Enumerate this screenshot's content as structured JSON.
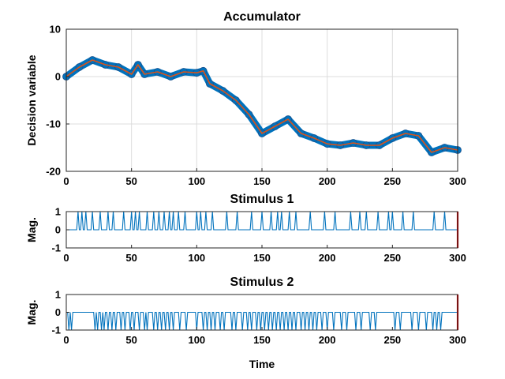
{
  "colors": {
    "accumulator_marker": "#0072BD",
    "accumulator_line": "#D95319",
    "stimulus_line": "#0072BD",
    "end_marker": "#CC0000",
    "grid": "#dcdcdc",
    "axes": "#262626"
  },
  "chart_data": [
    {
      "type": "line",
      "title": "Accumulator",
      "xlabel": "",
      "ylabel": "Decision variable",
      "xlim": [
        0,
        300
      ],
      "ylim": [
        -20,
        10
      ],
      "xticks": [
        0,
        50,
        100,
        150,
        200,
        250,
        300
      ],
      "yticks": [
        -20,
        -10,
        0,
        10
      ],
      "grid": true,
      "series": [
        {
          "style": "markers+line",
          "x": [
            0,
            10,
            20,
            30,
            40,
            50,
            55,
            60,
            70,
            80,
            90,
            100,
            105,
            110,
            120,
            130,
            140,
            150,
            160,
            170,
            180,
            190,
            200,
            210,
            220,
            230,
            240,
            250,
            260,
            270,
            280,
            290,
            300
          ],
          "y": [
            0,
            2,
            3.5,
            2.5,
            2,
            0.5,
            2.5,
            0.5,
            1,
            0,
            1,
            0.8,
            1.2,
            -1.5,
            -3,
            -5,
            -8,
            -12,
            -10.5,
            -9,
            -12,
            -13,
            -14.2,
            -14.5,
            -14,
            -14.5,
            -14.5,
            -13,
            -12,
            -12.5,
            -16,
            -15,
            -15.5
          ]
        }
      ]
    },
    {
      "type": "line",
      "title": "Stimulus 1",
      "xlabel": "",
      "ylabel": "Mag.",
      "xlim": [
        0,
        300
      ],
      "ylim": [
        -1,
        1
      ],
      "xticks": [
        0,
        50,
        100,
        150,
        200,
        250,
        300
      ],
      "yticks": [
        -1,
        0,
        1
      ],
      "grid": false,
      "series": [
        {
          "baseline": 0,
          "pulse_value": 1,
          "pulse_times": [
            9,
            12,
            15,
            20,
            26,
            32,
            36,
            44,
            50,
            53,
            56,
            62,
            67,
            71,
            75,
            79,
            82,
            86,
            91,
            100,
            103,
            107,
            112,
            123,
            131,
            142,
            150,
            157,
            162,
            165,
            171,
            176,
            187,
            198,
            206,
            218,
            225,
            230,
            239,
            247,
            250,
            258,
            266,
            282,
            290
          ]
        }
      ],
      "end_marker_x": 300
    },
    {
      "type": "line",
      "title": "Stimulus 2",
      "xlabel": "Time",
      "ylabel": "Mag.",
      "xlim": [
        0,
        300
      ],
      "ylim": [
        -1,
        1
      ],
      "xticks": [
        0,
        50,
        100,
        150,
        200,
        250,
        300
      ],
      "yticks": [
        -1,
        0,
        1
      ],
      "grid": false,
      "series": [
        {
          "baseline": 0,
          "pulse_value": -1,
          "pulse_times": [
            2,
            4,
            22,
            24,
            27,
            29,
            32,
            35,
            38,
            42,
            45,
            49,
            52,
            56,
            60,
            62,
            67,
            70,
            73,
            76,
            79,
            82,
            87,
            92,
            100,
            105,
            108,
            111,
            114,
            118,
            121,
            127,
            130,
            135,
            139,
            142,
            146,
            149,
            152,
            155,
            158,
            161,
            164,
            167,
            170,
            173,
            176,
            180,
            183,
            186,
            189,
            192,
            196,
            200,
            205,
            211,
            215,
            222,
            226,
            233,
            237,
            252,
            256,
            265,
            270,
            276,
            281,
            284,
            287
          ]
        }
      ],
      "end_marker_x": 300
    }
  ]
}
